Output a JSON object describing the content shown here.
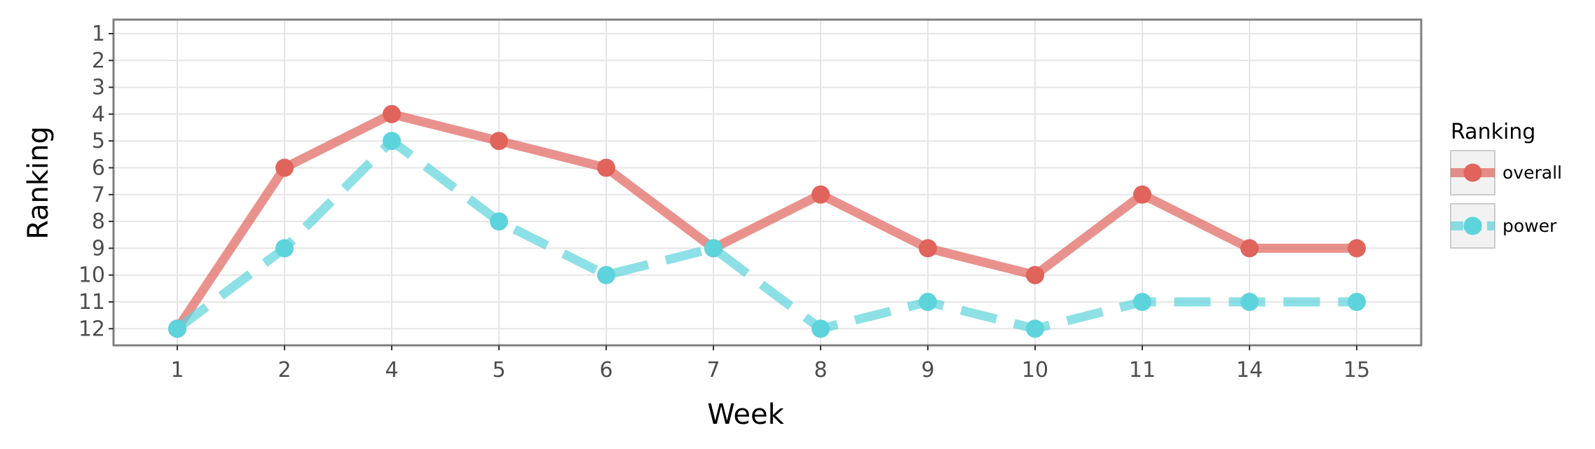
{
  "chart_data": {
    "type": "line",
    "title": "",
    "xlabel": "Week",
    "ylabel": "Ranking",
    "x_categories": [
      "1",
      "2",
      "4",
      "5",
      "6",
      "7",
      "8",
      "9",
      "10",
      "11",
      "14",
      "15"
    ],
    "y_ticks": [
      "1",
      "2",
      "3",
      "4",
      "5",
      "6",
      "7",
      "8",
      "9",
      "10",
      "11",
      "12"
    ],
    "ylim": [
      1,
      12
    ],
    "y_reversed": true,
    "grid": true,
    "legend": {
      "title": "Ranking",
      "position": "right"
    },
    "series": [
      {
        "name": "overall",
        "color": "#e0645c",
        "line_style": "solid",
        "values": [
          12,
          6,
          4,
          5,
          6,
          9,
          7,
          9,
          10,
          7,
          9,
          9
        ]
      },
      {
        "name": "power",
        "color": "#5dd3dc",
        "line_style": "dashed",
        "values": [
          12,
          9,
          5,
          8,
          10,
          9,
          12,
          11,
          12,
          11,
          11,
          11
        ]
      }
    ]
  }
}
